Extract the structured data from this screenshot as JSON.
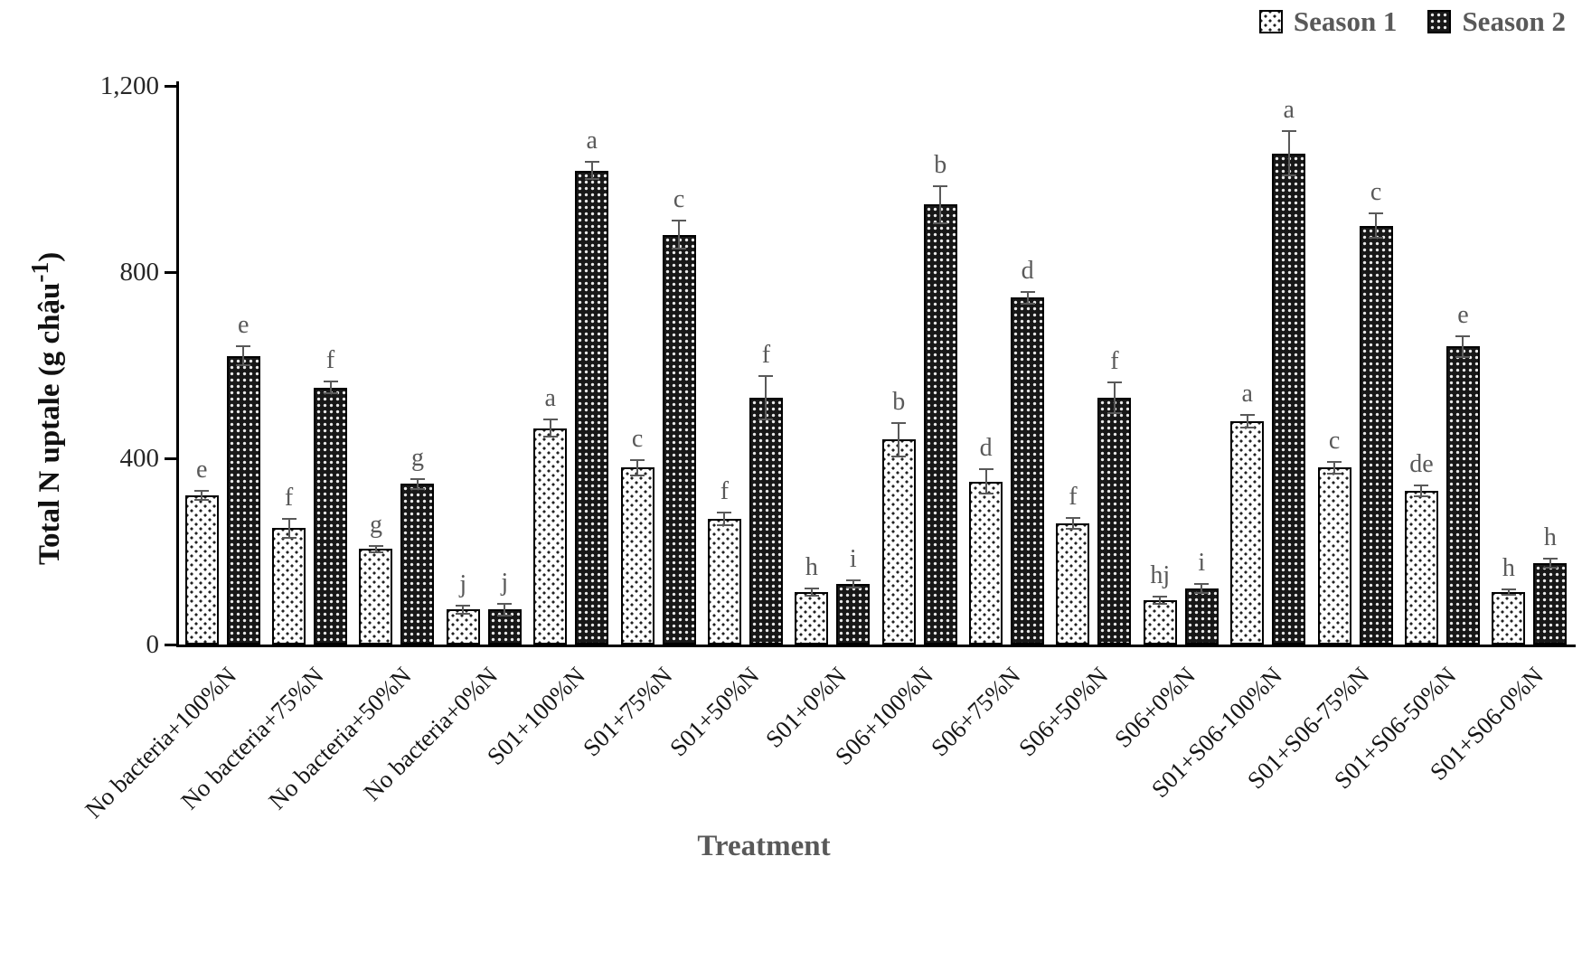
{
  "colors": {
    "axis": "#000000",
    "text_gray": "#595959",
    "bar_light_fill": "#ffffff",
    "bar_dark_fill": "#181818",
    "error_bar": "#595959"
  },
  "chart_data": {
    "type": "bar",
    "title": "",
    "xlabel": "Treatment",
    "ylabel": "Total N uptale (g chậu-1)",
    "ylabel_main": "Total N uptale (g chậu",
    "ylabel_sup": "-1",
    "ylabel_end": ")",
    "ylim": [
      0,
      1200
    ],
    "yticks": [
      0,
      400,
      800,
      1200
    ],
    "ytick_labels": [
      "0",
      "400",
      "800",
      "1,200"
    ],
    "grid": false,
    "legend_position": "top-right",
    "categories": [
      "No bacteria+100%N",
      "No bacteria+75%N",
      "No bacteria+50%N",
      "No bacteria+0%N",
      "S01+100%N",
      "S01+75%N",
      "S01+50%N",
      "S01+0%N",
      "S06+100%N",
      "S06+75%N",
      "S06+50%N",
      "S06+0%N",
      "S01+S06-100%N",
      "S01+S06-75%N",
      "S01+S06-50%N",
      "S01+S06-0%N"
    ],
    "series": [
      {
        "name": "Season 1",
        "pattern": "dots",
        "values": [
          320,
          250,
          205,
          75,
          465,
          380,
          270,
          112,
          440,
          350,
          260,
          95,
          480,
          380,
          330,
          112
        ],
        "errors": [
          12,
          22,
          8,
          10,
          20,
          18,
          15,
          10,
          38,
          28,
          14,
          10,
          15,
          14,
          14,
          8
        ],
        "letters": [
          "e",
          "f",
          "g",
          "j",
          "a",
          "c",
          "f",
          "h",
          "b",
          "d",
          "f",
          "hj",
          "a",
          "c",
          "de",
          "h"
        ]
      },
      {
        "name": "Season 2",
        "pattern": "checker",
        "values": [
          620,
          552,
          345,
          75,
          1018,
          880,
          530,
          130,
          945,
          745,
          530,
          120,
          1055,
          900,
          640,
          175
        ],
        "errors": [
          22,
          15,
          12,
          15,
          20,
          32,
          48,
          10,
          42,
          15,
          35,
          12,
          50,
          28,
          25,
          12
        ],
        "letters": [
          "e",
          "f",
          "g",
          "j",
          "a",
          "c",
          "f",
          "i",
          "b",
          "d",
          "f",
          "i",
          "a",
          "c",
          "e",
          "h"
        ]
      }
    ]
  }
}
